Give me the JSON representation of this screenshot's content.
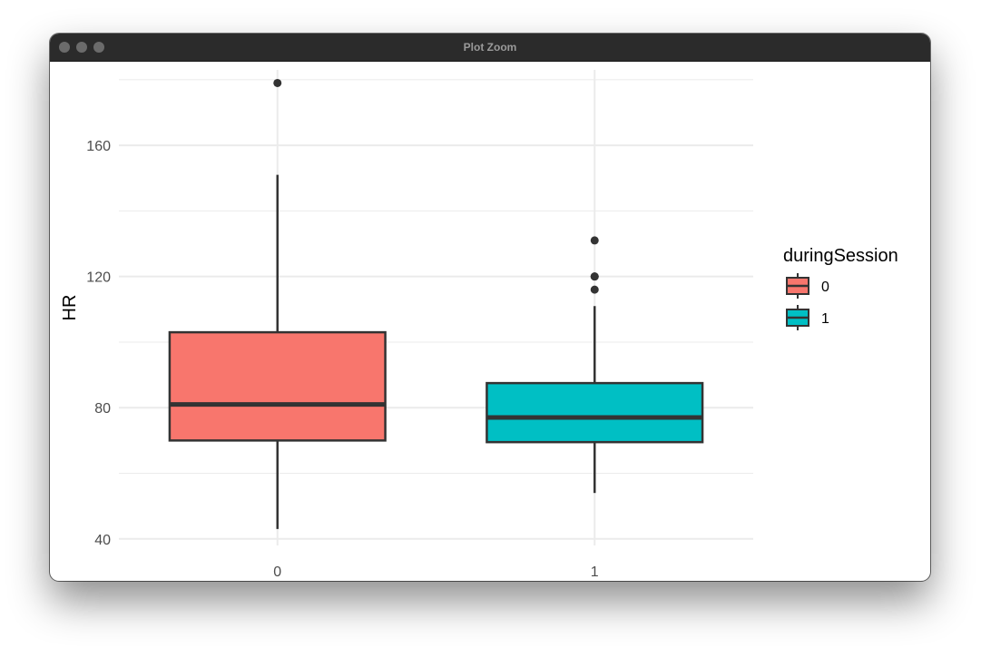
{
  "window": {
    "title": "Plot Zoom"
  },
  "colors": {
    "fill_0": "#F8766D",
    "fill_1": "#00BFC4",
    "outline": "#333333",
    "grid": "#EBEBEB",
    "titlebar": "#2B2B2B"
  },
  "chart_data": {
    "type": "box",
    "xlabel": "duringSession",
    "ylabel": "HR",
    "ylim": [
      38,
      183
    ],
    "yticks": [
      40,
      80,
      120,
      160
    ],
    "grid": true,
    "legend": {
      "title": "duringSession",
      "placement": "right",
      "entries": [
        "0",
        "1"
      ]
    },
    "boxes": [
      {
        "category": "0",
        "whisker_low": 43,
        "q1": 70,
        "median": 81,
        "q3": 103,
        "whisker_high": 151,
        "outliers": [
          179
        ]
      },
      {
        "category": "1",
        "whisker_low": 54,
        "q1": 69.5,
        "median": 77,
        "q3": 87.5,
        "whisker_high": 111,
        "outliers": [
          116,
          120,
          120,
          131
        ]
      }
    ]
  }
}
